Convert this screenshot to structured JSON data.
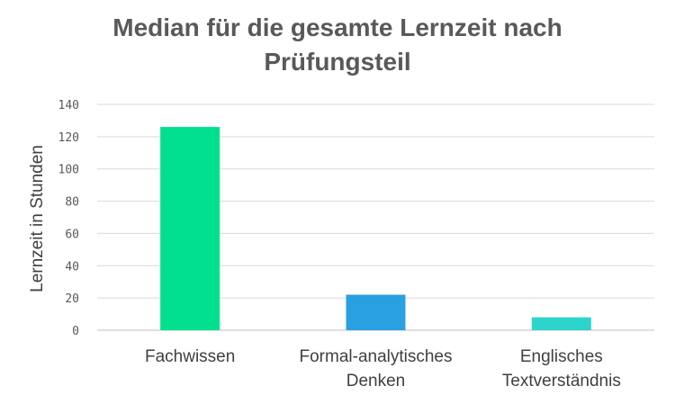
{
  "chart_data": {
    "type": "bar",
    "title": "Median für die gesamte Lernzeit nach Prüfungsteil",
    "ylabel": "Lernzeit in Stunden",
    "xlabel": "",
    "categories": [
      [
        "Fachwissen"
      ],
      [
        "Formal-analytisches",
        "Denken"
      ],
      [
        "Englisches",
        "Textverständnis"
      ]
    ],
    "values": [
      126,
      22,
      8
    ],
    "colors": [
      "#00E08F",
      "#29A0E0",
      "#2DD4CC"
    ],
    "ylim": [
      0,
      140
    ],
    "yticks": [
      "0",
      "20",
      "40",
      "60",
      "80",
      "100",
      "120",
      "140"
    ],
    "grid": true,
    "legend": "none"
  }
}
